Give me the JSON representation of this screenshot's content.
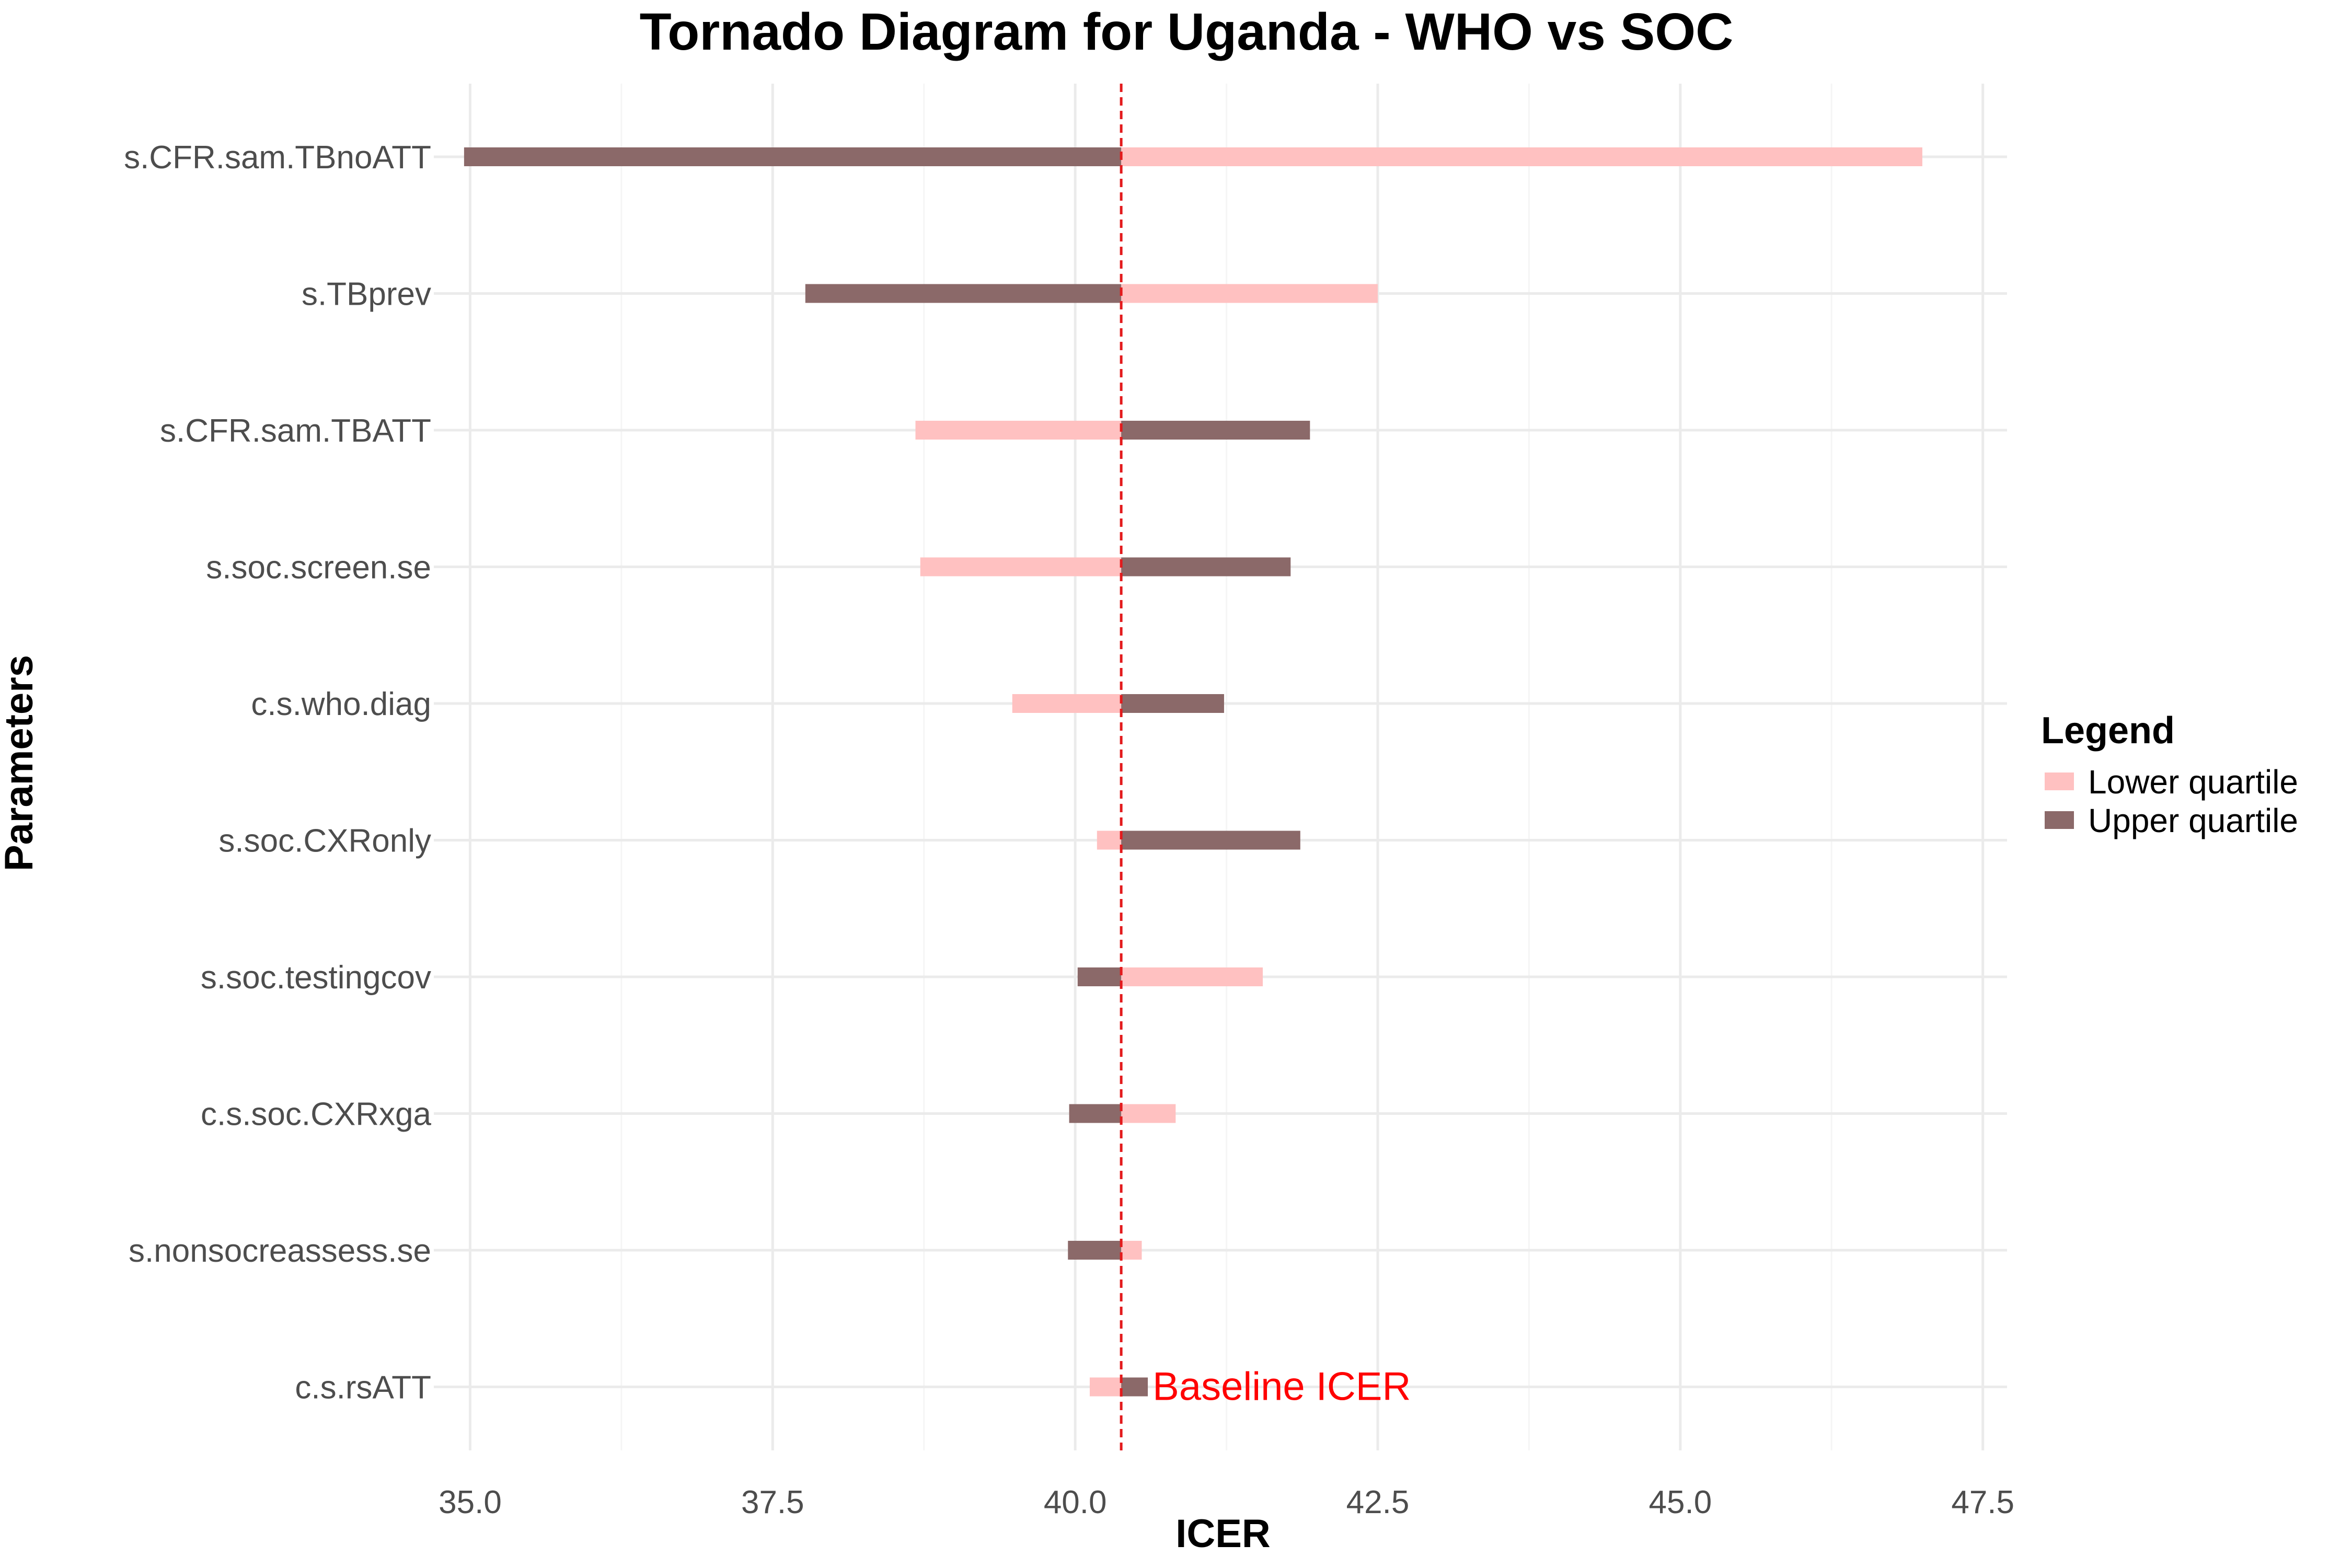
{
  "chart_data": {
    "type": "bar",
    "orientation": "horizontal",
    "title": "Tornado Diagram for Uganda - WHO vs SOC",
    "xlabel": "ICER",
    "ylabel": "Parameters",
    "xlim": [
      34.7,
      47.7
    ],
    "xticks": [
      35.0,
      37.5,
      40.0,
      42.5,
      45.0,
      47.5
    ],
    "xtick_labels": [
      "35.0",
      "37.5",
      "40.0",
      "42.5",
      "45.0",
      "47.5"
    ],
    "grid": true,
    "baseline": 40.38,
    "baseline_label": "Baseline ICER",
    "legend": {
      "title": "Legend",
      "position": "right",
      "entries": [
        {
          "label": "Lower quartile",
          "color": "#ffc1c1"
        },
        {
          "label": "Upper quartile",
          "color": "#8b6969"
        }
      ]
    },
    "categories": [
      "s.CFR.sam.TBnoATT",
      "s.TBprev",
      "s.CFR.sam.TBATT",
      "s.soc.screen.se",
      "c.s.who.diag",
      "s.soc.CXRonly",
      "s.soc.testingcov",
      "c.s.soc.CXRxga",
      "s.nonsocreassess.se",
      "c.s.rsATT"
    ],
    "series": [
      {
        "name": "Lower quartile",
        "values": [
          47.0,
          42.5,
          38.68,
          38.72,
          39.48,
          40.18,
          41.55,
          40.83,
          40.55,
          40.12
        ]
      },
      {
        "name": "Upper quartile",
        "values": [
          34.95,
          37.77,
          41.94,
          41.78,
          41.23,
          41.86,
          40.02,
          39.95,
          39.94,
          40.6
        ]
      }
    ],
    "colors": {
      "lower": "#ffc1c1",
      "upper": "#8b6969",
      "baseline": "#e31a1c",
      "annotation": "#ff0000",
      "grid_major": "#ebebeb",
      "grid_minor": "#f5f5f5"
    }
  }
}
